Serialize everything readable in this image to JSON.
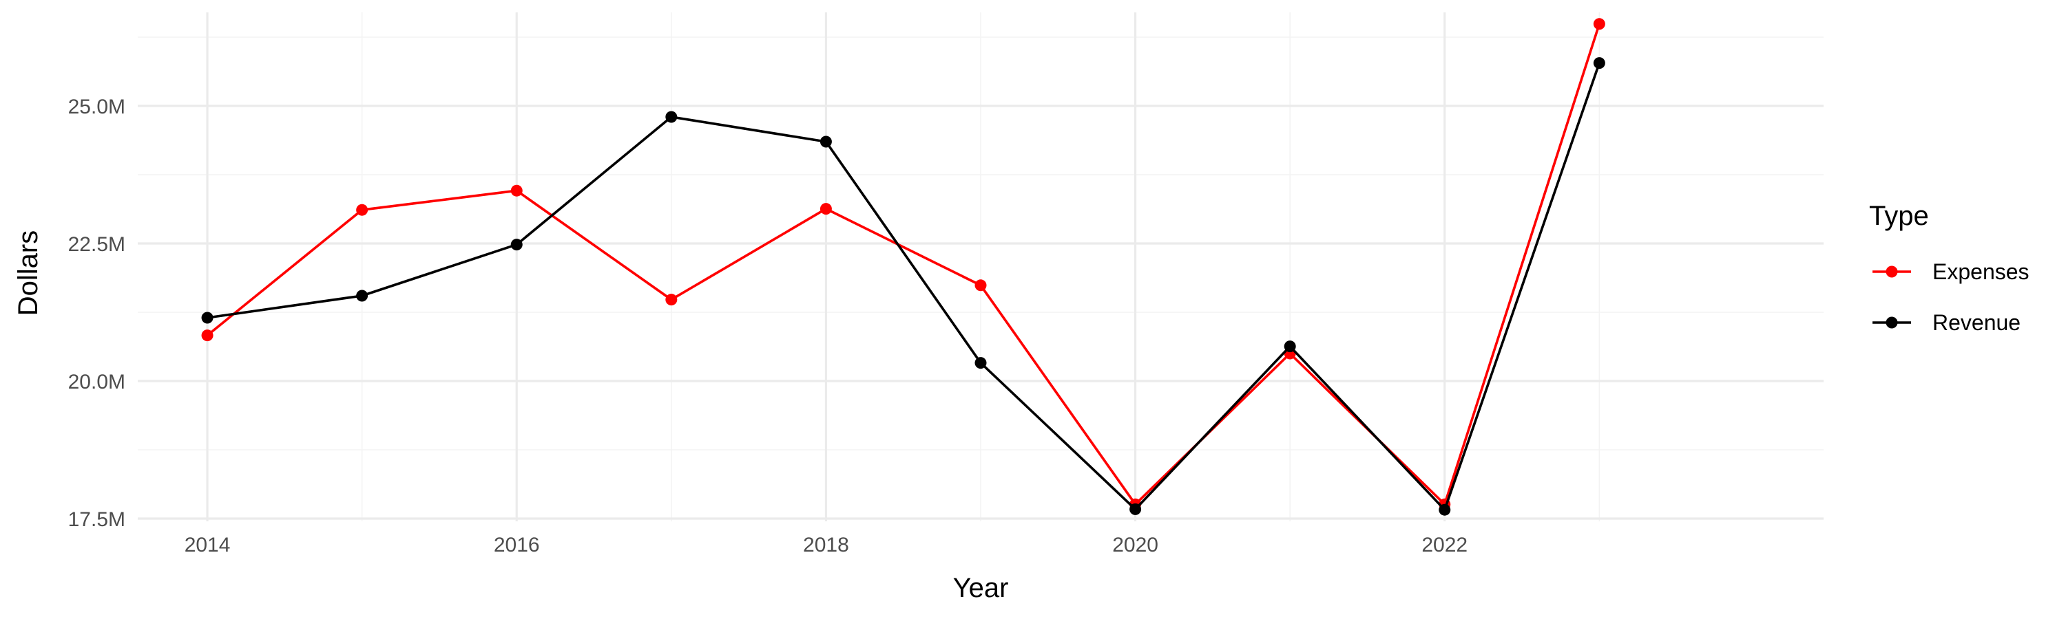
{
  "chart_data": {
    "type": "line",
    "title": "",
    "xlabel": "Year",
    "ylabel": "Dollars",
    "x": [
      2014,
      2015,
      2016,
      2017,
      2018,
      2019,
      2020,
      2021,
      2022,
      2023
    ],
    "x_ticks": [
      2014,
      2016,
      2018,
      2020,
      2022
    ],
    "x_tick_labels": [
      "2014",
      "2016",
      "2018",
      "2020",
      "2022"
    ],
    "xlim": [
      2013.55,
      2024.45
    ],
    "y_ticks": [
      17500000,
      20000000,
      22500000,
      25000000
    ],
    "y_tick_labels": [
      "17.5M",
      "20.0M",
      "22.5M",
      "25.0M"
    ],
    "ylim": [
      17450000,
      26700000
    ],
    "grid": true,
    "legend": {
      "title": "Type",
      "placement": "right"
    },
    "series": [
      {
        "name": "Expenses",
        "color": "#ff0000",
        "values": [
          20830000,
          23110000,
          23460000,
          21480000,
          23130000,
          21740000,
          17760000,
          20500000,
          17760000,
          26490000
        ]
      },
      {
        "name": "Revenue",
        "color": "#000000",
        "values": [
          21150000,
          21550000,
          22480000,
          24800000,
          24350000,
          20330000,
          17670000,
          20630000,
          17660000,
          25780000
        ]
      }
    ]
  }
}
